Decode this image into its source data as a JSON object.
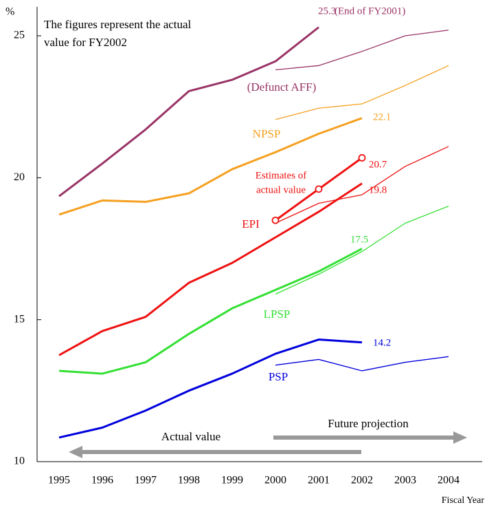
{
  "chart_data": {
    "type": "line",
    "ylabel": "%",
    "xlabel": "Fiscal Year",
    "note": [
      "The figures represent the actual",
      "value for FY2002"
    ],
    "end_note": "(End of FY2001)",
    "actual_label": "Actual value",
    "future_label": "Future projection",
    "categories": [
      "1995",
      "1996",
      "1997",
      "1998",
      "1999",
      "2000",
      "2001",
      "2002",
      "2003",
      "2004"
    ],
    "ylim": [
      10,
      25
    ],
    "yticks": [
      10,
      15,
      20,
      25
    ],
    "series": [
      {
        "color": "#993366",
        "width": "thick",
        "values": [
          19.35,
          20.5,
          21.7,
          23.05,
          23.45,
          24.1,
          25.3,
          null,
          null,
          null
        ],
        "value_labels": [
          null,
          null,
          null,
          null,
          null,
          null,
          "25.3",
          null,
          null,
          null
        ]
      },
      {
        "name": "(Defunct AFF)",
        "color": "#993366",
        "width": "thin",
        "values": [
          null,
          null,
          null,
          null,
          null,
          23.8,
          23.95,
          24.45,
          25.0,
          25.2
        ]
      },
      {
        "name": "NPSP",
        "color": "#f5a020",
        "width": "thick",
        "values": [
          18.7,
          19.2,
          19.15,
          19.45,
          20.3,
          20.9,
          21.55,
          22.1,
          null,
          null
        ],
        "value_labels": [
          null,
          null,
          null,
          null,
          null,
          null,
          null,
          "22.1",
          null,
          null
        ]
      },
      {
        "color": "#f5a020",
        "width": "thin",
        "values": [
          null,
          null,
          null,
          null,
          null,
          22.05,
          22.45,
          22.6,
          23.25,
          23.95
        ]
      },
      {
        "name": "EPI",
        "color": "#ee1111",
        "width": "thick",
        "values": [
          13.75,
          14.6,
          15.1,
          16.3,
          17.0,
          17.9,
          18.8,
          19.8,
          null,
          null
        ],
        "value_labels": [
          null,
          null,
          null,
          null,
          null,
          null,
          null,
          "19.8",
          null,
          null
        ]
      },
      {
        "color": "#ee1111",
        "width": "thin",
        "values": [
          null,
          null,
          null,
          null,
          null,
          18.4,
          19.1,
          19.4,
          20.4,
          21.1
        ]
      },
      {
        "name": [
          "Estimates of",
          "actual value"
        ],
        "color": "#ee1111",
        "width": "thick",
        "markers": true,
        "values": [
          null,
          null,
          null,
          null,
          null,
          18.5,
          19.6,
          20.7,
          null,
          null
        ],
        "value_labels": [
          null,
          null,
          null,
          null,
          null,
          null,
          null,
          "20.7",
          null,
          null
        ]
      },
      {
        "name": "LPSP",
        "color": "#33e033",
        "width": "thick",
        "values": [
          13.2,
          13.1,
          13.5,
          14.5,
          15.4,
          16.05,
          16.7,
          17.5,
          null,
          null
        ],
        "value_labels": [
          null,
          null,
          null,
          null,
          null,
          null,
          null,
          "17.5",
          null,
          null
        ]
      },
      {
        "color": "#33e033",
        "width": "thin",
        "values": [
          null,
          null,
          null,
          null,
          null,
          15.9,
          16.6,
          17.4,
          18.4,
          19.0
        ]
      },
      {
        "name": "PSP",
        "color": "#0000dd",
        "width": "thick",
        "values": [
          10.85,
          11.2,
          11.8,
          12.5,
          13.1,
          13.8,
          14.3,
          14.2,
          null,
          null
        ],
        "value_labels": [
          null,
          null,
          null,
          null,
          null,
          null,
          null,
          "14.2",
          null,
          null
        ]
      },
      {
        "color": "#0000dd",
        "width": "thin",
        "values": [
          null,
          null,
          null,
          null,
          null,
          13.4,
          13.6,
          13.2,
          13.5,
          13.7
        ]
      }
    ]
  }
}
